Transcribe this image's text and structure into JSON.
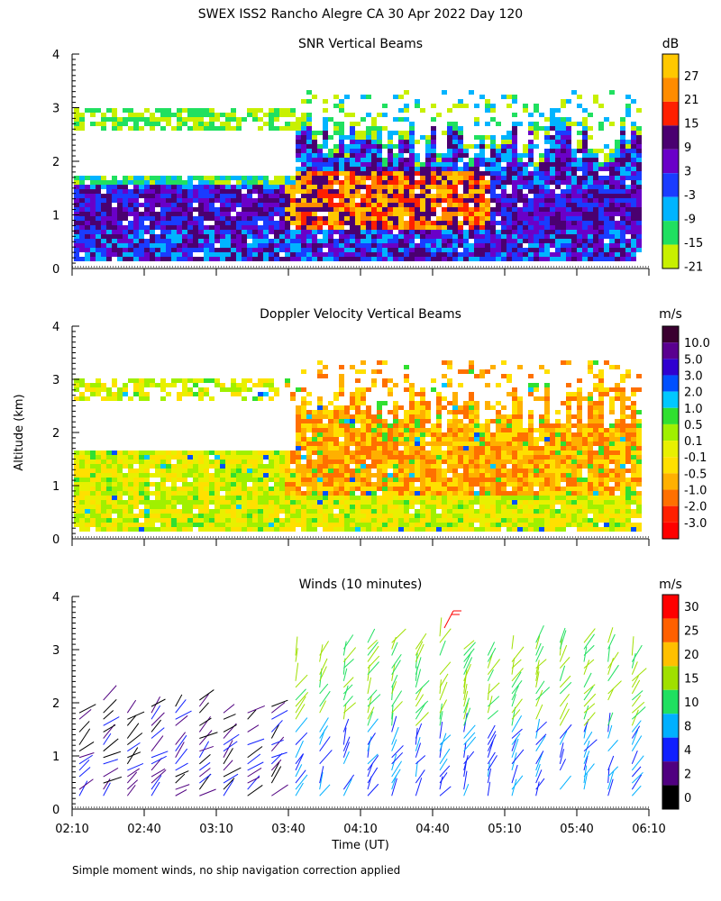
{
  "figure": {
    "title": "SWEX ISS2 Rancho Alegre CA  30 Apr 2022 Day 120",
    "ylabel": "Altitude (km)",
    "xlabel": "Time (UT)",
    "footnote": "Simple moment winds, no ship navigation correction applied",
    "xticks": [
      "02:10",
      "02:40",
      "03:10",
      "03:40",
      "04:10",
      "04:40",
      "05:10",
      "05:40",
      "06:10"
    ],
    "yticks": [
      "0",
      "1",
      "2",
      "3",
      "4"
    ]
  },
  "chart_data": [
    {
      "type": "heatmap",
      "title": "SNR Vertical Beams",
      "units": "dB",
      "xlabel": "Time (UT)",
      "ylabel": "Altitude (km)",
      "xlim": [
        "02:10",
        "06:10"
      ],
      "ylim": [
        0,
        4
      ],
      "colorbar_ticks": [
        "27",
        "21",
        "15",
        "9",
        "3",
        "-3",
        "-9",
        "-15",
        "-21"
      ],
      "colors": [
        "#ffc800",
        "#ff8c00",
        "#ff2000",
        "#4a0070",
        "#6a00c8",
        "#1a3cff",
        "#00b4ff",
        "#20e060",
        "#c8f000"
      ],
      "description_top_km": [
        2.9,
        3.3
      ]
    },
    {
      "type": "heatmap",
      "title": "Doppler Velocity Vertical Beams",
      "units": "m/s",
      "xlabel": "Time (UT)",
      "ylabel": "Altitude (km)",
      "xlim": [
        "02:10",
        "06:10"
      ],
      "ylim": [
        0,
        4
      ],
      "colorbar_ticks": [
        "10.0",
        "5.0",
        "3.0",
        "2.0",
        "1.0",
        "0.5",
        "0.1",
        "-0.1",
        "-0.5",
        "-1.0",
        "-2.0",
        "-3.0"
      ],
      "colors": [
        "#3a0030",
        "#5a0090",
        "#3000d0",
        "#0050ff",
        "#00c8ff",
        "#30e030",
        "#a0f000",
        "#e8f000",
        "#ffe000",
        "#ffb000",
        "#ff7000",
        "#ff2000",
        "#ff0000"
      ]
    },
    {
      "type": "wind_barbs",
      "title": "Winds (10 minutes)",
      "units": "m/s",
      "xlabel": "Time (UT)",
      "ylabel": "Altitude (km)",
      "xlim": [
        "02:10",
        "06:10"
      ],
      "ylim": [
        0,
        4
      ],
      "colorbar_ticks": [
        "30",
        "25",
        "20",
        "15",
        "10",
        "8",
        "4",
        "2",
        "0"
      ],
      "colors": [
        "#ff0000",
        "#ff6000",
        "#ffc000",
        "#a0e000",
        "#20e060",
        "#00b0ff",
        "#1020ff",
        "#500080",
        "#000000"
      ]
    }
  ]
}
